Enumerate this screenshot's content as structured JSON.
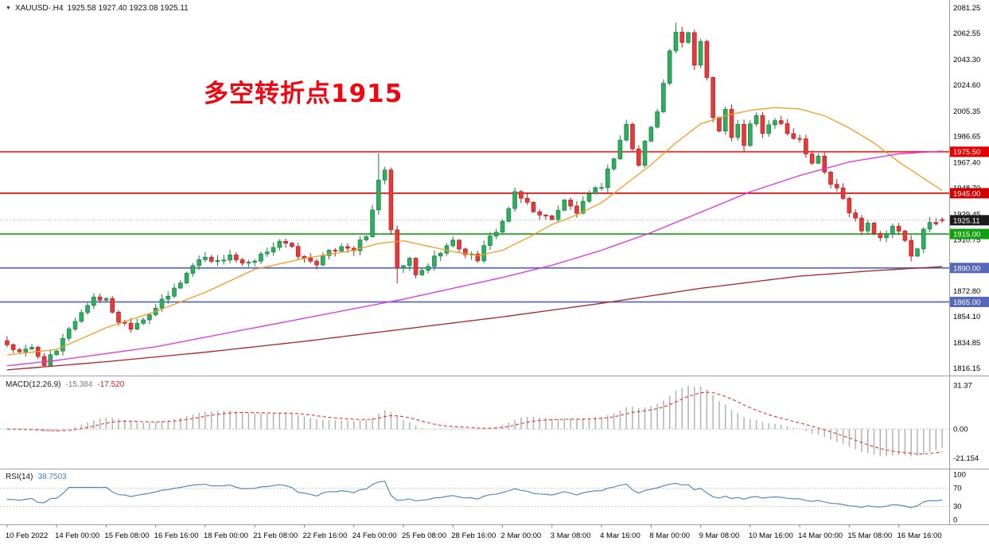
{
  "header": {
    "marker": "▼",
    "symbol_period": "XAUUSD-.H4",
    "ohlc": "1925.58 1927.40 1923.08 1925.11"
  },
  "annotation": {
    "text": "多空转折点1915",
    "color": "#f20510"
  },
  "indicators": {
    "macd_name": "MACD(12,26,9)",
    "macd_value": "-15.384",
    "macd_signal": "-17.520",
    "rsi_name": "RSI(14)",
    "rsi_value": "38.7503"
  },
  "chart_data": {
    "type": "candlestick",
    "symbol": "XAUUSD-",
    "timeframe": "H4",
    "title": "XAUUSD- H4 with MACD(12,26,9) and RSI(14)",
    "current_bar": {
      "open": 1925.58,
      "high": 1927.4,
      "low": 1923.08,
      "close": 1925.11
    },
    "n_bars": 152,
    "label_every": 8,
    "x_labels": [
      "10 Feb 2022",
      "14 Feb 00:00",
      "15 Feb 08:00",
      "16 Feb 16:00",
      "18 Feb 00:00",
      "21 Feb 08:00",
      "22 Feb 16:00",
      "24 Feb 00:00",
      "25 Feb 08:00",
      "28 Feb 16:00",
      "2 Mar 00:00",
      "3 Mar 08:00",
      "4 Mar 16:00",
      "8 Mar 00:00",
      "9 Mar 08:00",
      "10 Mar 16:00",
      "14 Mar 00:00",
      "15 Mar 08:00",
      "16 Mar 16:00"
    ],
    "y_axis": {
      "labels": [
        "2081.25",
        "2062.55",
        "2043.30",
        "2024.60",
        "2005.35",
        "1986.65",
        "1967.40",
        "1948.70",
        "1929.45",
        "1910.75",
        "1891.50",
        "1872.80",
        "1854.10",
        "1834.85",
        "1816.15"
      ],
      "min": 1812,
      "max": 2086
    },
    "close_waypoints": [
      [
        0,
        1834
      ],
      [
        2,
        1827
      ],
      [
        4,
        1831
      ],
      [
        6,
        1820
      ],
      [
        8,
        1828
      ],
      [
        10,
        1846
      ],
      [
        12,
        1857
      ],
      [
        14,
        1869
      ],
      [
        16,
        1866
      ],
      [
        18,
        1851
      ],
      [
        20,
        1847
      ],
      [
        22,
        1853
      ],
      [
        24,
        1861
      ],
      [
        26,
        1869
      ],
      [
        28,
        1880
      ],
      [
        30,
        1892
      ],
      [
        32,
        1899
      ],
      [
        34,
        1894
      ],
      [
        36,
        1900
      ],
      [
        38,
        1892
      ],
      [
        40,
        1894
      ],
      [
        42,
        1903
      ],
      [
        44,
        1910
      ],
      [
        46,
        1904
      ],
      [
        48,
        1896
      ],
      [
        50,
        1894
      ],
      [
        52,
        1901
      ],
      [
        54,
        1907
      ],
      [
        56,
        1904
      ],
      [
        58,
        1913
      ],
      [
        59,
        1932
      ],
      [
        60,
        1956
      ],
      [
        61,
        1960
      ],
      [
        62,
        1918
      ],
      [
        63,
        1888
      ],
      [
        65,
        1896
      ],
      [
        66,
        1884
      ],
      [
        68,
        1892
      ],
      [
        70,
        1903
      ],
      [
        72,
        1909
      ],
      [
        74,
        1901
      ],
      [
        76,
        1897
      ],
      [
        78,
        1912
      ],
      [
        80,
        1924
      ],
      [
        82,
        1944
      ],
      [
        84,
        1938
      ],
      [
        86,
        1928
      ],
      [
        88,
        1927
      ],
      [
        90,
        1939
      ],
      [
        92,
        1931
      ],
      [
        94,
        1943
      ],
      [
        96,
        1951
      ],
      [
        98,
        1972
      ],
      [
        100,
        1996
      ],
      [
        101,
        1977
      ],
      [
        102,
        1966
      ],
      [
        103,
        1983
      ],
      [
        104,
        1993
      ],
      [
        105,
        2006
      ],
      [
        106,
        2028
      ],
      [
        107,
        2049
      ],
      [
        108,
        2064
      ],
      [
        109,
        2054
      ],
      [
        110,
        2062
      ],
      [
        111,
        2040
      ],
      [
        112,
        2057
      ],
      [
        113,
        2032
      ],
      [
        114,
        2001
      ],
      [
        115,
        1991
      ],
      [
        116,
        2006
      ],
      [
        117,
        1985
      ],
      [
        118,
        1997
      ],
      [
        119,
        1979
      ],
      [
        120,
        1995
      ],
      [
        121,
        2001
      ],
      [
        122,
        1990
      ],
      [
        124,
        1999
      ],
      [
        126,
        1989
      ],
      [
        128,
        1985
      ],
      [
        129,
        1976
      ],
      [
        130,
        1968
      ],
      [
        131,
        1973
      ],
      [
        132,
        1961
      ],
      [
        133,
        1952
      ],
      [
        134,
        1948
      ],
      [
        135,
        1941
      ],
      [
        136,
        1931
      ],
      [
        137,
        1926
      ],
      [
        138,
        1919
      ],
      [
        139,
        1924
      ],
      [
        140,
        1917
      ],
      [
        141,
        1912
      ],
      [
        142,
        1917
      ],
      [
        143,
        1921
      ],
      [
        144,
        1916
      ],
      [
        145,
        1910
      ],
      [
        146,
        1899
      ],
      [
        147,
        1903
      ],
      [
        148,
        1917
      ],
      [
        149,
        1923
      ],
      [
        151,
        1925.11
      ]
    ],
    "wick_events": [
      {
        "i": 6,
        "l": 1817.5
      },
      {
        "i": 60,
        "h": 1974.3
      },
      {
        "i": 63,
        "l": 1878.6
      },
      {
        "i": 108,
        "h": 2070.5
      },
      {
        "i": 119,
        "l": 1975.3
      },
      {
        "i": 146,
        "l": 1894.8
      }
    ],
    "candle_colors": {
      "up": "#2fae62",
      "up_border": "#15803d",
      "down": "#e33b3b",
      "down_border": "#b91c1c"
    },
    "ma_lines": [
      {
        "name": "ma-fast",
        "color": "#f59b22",
        "points": [
          [
            0,
            1826
          ],
          [
            8,
            1830
          ],
          [
            16,
            1846
          ],
          [
            24,
            1858
          ],
          [
            32,
            1872
          ],
          [
            40,
            1889
          ],
          [
            48,
            1897
          ],
          [
            56,
            1903
          ],
          [
            60,
            1908
          ],
          [
            64,
            1910
          ],
          [
            68,
            1906
          ],
          [
            72,
            1902
          ],
          [
            76,
            1899
          ],
          [
            80,
            1903
          ],
          [
            84,
            1912
          ],
          [
            88,
            1922
          ],
          [
            92,
            1929
          ],
          [
            96,
            1938
          ],
          [
            100,
            1952
          ],
          [
            104,
            1966
          ],
          [
            108,
            1982
          ],
          [
            112,
            1996
          ],
          [
            116,
            2002
          ],
          [
            120,
            2006
          ],
          [
            124,
            2008
          ],
          [
            128,
            2007
          ],
          [
            132,
            2002
          ],
          [
            136,
            1993
          ],
          [
            140,
            1982
          ],
          [
            144,
            1968
          ],
          [
            148,
            1956
          ],
          [
            151,
            1947
          ]
        ]
      },
      {
        "name": "ma-mid",
        "color": "#e12fe1",
        "points": [
          [
            0,
            1818
          ],
          [
            8,
            1822
          ],
          [
            16,
            1827
          ],
          [
            24,
            1832
          ],
          [
            32,
            1839
          ],
          [
            40,
            1846
          ],
          [
            48,
            1853
          ],
          [
            56,
            1860
          ],
          [
            64,
            1867
          ],
          [
            72,
            1875
          ],
          [
            80,
            1883
          ],
          [
            88,
            1892
          ],
          [
            96,
            1903
          ],
          [
            104,
            1916
          ],
          [
            112,
            1931
          ],
          [
            120,
            1946
          ],
          [
            128,
            1958
          ],
          [
            136,
            1968
          ],
          [
            144,
            1974
          ],
          [
            151,
            1976
          ]
        ]
      },
      {
        "name": "ma-slow",
        "color": "#b02020",
        "points": [
          [
            0,
            1815
          ],
          [
            16,
            1821
          ],
          [
            32,
            1828
          ],
          [
            48,
            1836
          ],
          [
            64,
            1845
          ],
          [
            80,
            1854
          ],
          [
            96,
            1864
          ],
          [
            112,
            1875
          ],
          [
            128,
            1884
          ],
          [
            140,
            1888
          ],
          [
            151,
            1891
          ]
        ]
      }
    ],
    "h_levels": [
      {
        "price": 1975.5,
        "label": "1975.50",
        "color": "#ff2020",
        "badge_bg": "#e60000"
      },
      {
        "price": 1945.0,
        "label": "1945.00",
        "color": "#d40000",
        "badge_bg": "#d40000"
      },
      {
        "price": 1915.0,
        "label": "1915.00",
        "color": "#13a10e",
        "badge_bg": "#12a10e"
      },
      {
        "price": 1890.0,
        "label": "1890.00",
        "color": "#5868b8",
        "badge_bg": "#5868b8"
      },
      {
        "price": 1865.0,
        "label": "1865.00",
        "color": "#5868b8",
        "badge_bg": "#5868b8"
      }
    ],
    "current_price": {
      "value": 1925.11,
      "badge_text": "1925.11",
      "badge_bg": "#1c1c1c",
      "line_color": "#aaaaaa"
    },
    "macd": {
      "params": [
        12,
        26,
        9
      ],
      "value": -15.384,
      "signal_value": -17.52,
      "axis_labels": [
        "31.37",
        "0.00",
        "-21.154"
      ],
      "axis_values": [
        31.37,
        0,
        -21.154
      ],
      "range": [
        -28,
        37.5
      ],
      "histogram_color": "#adadad",
      "signal_color": "#e03131"
    },
    "rsi": {
      "period": 14,
      "value": 38.7503,
      "axis_labels": [
        "100",
        "70",
        "30",
        "0"
      ],
      "axis_values": [
        100,
        70,
        30,
        0
      ],
      "levels": [
        70,
        30
      ],
      "range": [
        -8,
        110
      ],
      "line_color": "#4a7ebb"
    }
  }
}
